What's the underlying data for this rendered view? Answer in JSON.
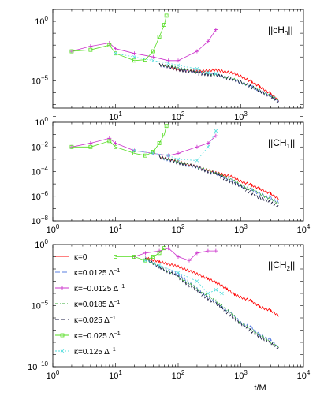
{
  "chart_data": [
    {
      "type": "line",
      "panel_label": "||cH",
      "panel_label_sub": "0",
      "panel_label_end": "||",
      "xscale": "log",
      "yscale": "log",
      "xlim": [
        1,
        10000
      ],
      "ylim": [
        5e-08,
        10
      ],
      "xticks": [
        {
          "v": 10,
          "b": "10",
          "e": "1"
        },
        {
          "v": 100,
          "b": "10",
          "e": "2"
        },
        {
          "v": 1000,
          "b": "10",
          "e": "3"
        }
      ],
      "yticks": [
        {
          "v": 1,
          "b": "10",
          "e": "0"
        },
        {
          "v": 1e-05,
          "b": "10",
          "e": "−5"
        }
      ],
      "series": [
        {
          "key": "k0",
          "x": [
            50,
            100,
            200,
            400,
            700,
            1000,
            1500,
            2000,
            3000,
            4000
          ],
          "y": [
            0.0003,
            0.0001,
            8e-05,
            0.0001,
            6e-05,
            3e-05,
            1e-05,
            4e-06,
            1e-06,
            3e-07
          ],
          "oscillate": true
        },
        {
          "key": "k1",
          "x": [
            50,
            100,
            200,
            400,
            700,
            1000,
            1500,
            2000,
            3000,
            4000
          ],
          "y": [
            0.0003,
            0.00015,
            8e-05,
            5e-05,
            2e-05,
            1e-05,
            5e-06,
            2e-06,
            8e-07,
            3e-07
          ],
          "oscillate": true
        },
        {
          "key": "k2",
          "x": [
            2,
            4,
            8,
            10,
            20,
            40,
            70,
            100,
            200,
            300,
            400
          ],
          "y": [
            0.003,
            0.008,
            0.015,
            0.005,
            0.002,
            0.001,
            0.0005,
            0.0005,
            0.003,
            0.02,
            0.2
          ]
        },
        {
          "key": "k3",
          "x": [
            50,
            100,
            200,
            400,
            700,
            1000,
            2000,
            4000
          ],
          "y": [
            0.0003,
            0.00015,
            7e-05,
            4e-05,
            2e-05,
            1e-05,
            2e-06,
            3e-07
          ],
          "oscillate": true
        },
        {
          "key": "k4",
          "x": [
            50,
            100,
            200,
            400,
            700,
            1000,
            2000,
            4000
          ],
          "y": [
            0.0003,
            0.00012,
            6e-05,
            4e-05,
            2e-05,
            1e-05,
            2e-06,
            2e-07
          ],
          "oscillate": true
        },
        {
          "key": "k5",
          "x": [
            2,
            4,
            8,
            10,
            20,
            30,
            40,
            50,
            60,
            65
          ],
          "y": [
            0.003,
            0.004,
            0.01,
            0.002,
            0.0005,
            0.0006,
            0.003,
            0.05,
            0.5,
            3
          ]
        },
        {
          "key": "k6",
          "x": [
            10,
            20,
            40,
            70,
            100,
            200,
            300,
            400
          ],
          "y": [
            0.002,
            0.001,
            0.0005,
            0.0003,
            0.0002,
            0.0001,
            5e-05,
            4e-05
          ]
        }
      ]
    },
    {
      "type": "line",
      "panel_label": "||CH",
      "panel_label_sub": "1",
      "panel_label_end": "||",
      "xscale": "log",
      "yscale": "log",
      "xlim": [
        1,
        10000
      ],
      "ylim": [
        1e-08,
        1
      ],
      "xticks": [
        {
          "v": 1,
          "b": "10",
          "e": "0"
        },
        {
          "v": 10,
          "b": "10",
          "e": "1"
        },
        {
          "v": 100,
          "b": "10",
          "e": "2"
        },
        {
          "v": 1000,
          "b": "10",
          "e": "3"
        },
        {
          "v": 10000,
          "b": "10",
          "e": "4"
        }
      ],
      "yticks": [
        {
          "v": 1,
          "b": "10",
          "e": "0"
        },
        {
          "v": 0.01,
          "b": "10",
          "e": "−2"
        },
        {
          "v": 0.0001,
          "b": "10",
          "e": "−4"
        },
        {
          "v": 1e-06,
          "b": "10",
          "e": "−6"
        },
        {
          "v": 1e-08,
          "b": "10",
          "e": "−8"
        }
      ],
      "series": [
        {
          "key": "k0",
          "x": [
            50,
            100,
            200,
            400,
            700,
            1000,
            1500,
            2000,
            3000,
            4000
          ],
          "y": [
            0.002,
            0.0008,
            0.0003,
            0.0001,
            5e-05,
            2e-05,
            1e-05,
            5e-06,
            2e-06,
            8e-07
          ],
          "oscillate": true
        },
        {
          "key": "k1",
          "x": [
            50,
            100,
            200,
            400,
            700,
            1000,
            1500,
            2000,
            3000,
            4000
          ],
          "y": [
            0.002,
            0.0008,
            0.0003,
            0.0001,
            3e-05,
            1e-05,
            5e-06,
            2e-06,
            1e-06,
            5e-07
          ],
          "oscillate": true
        },
        {
          "key": "k2",
          "x": [
            2,
            4,
            8,
            10,
            20,
            40,
            70,
            100,
            200,
            300,
            400
          ],
          "y": [
            0.01,
            0.02,
            0.05,
            0.02,
            0.005,
            0.003,
            0.002,
            0.003,
            0.01,
            0.02,
            0.08
          ]
        },
        {
          "key": "k3",
          "x": [
            50,
            100,
            200,
            400,
            700,
            1000,
            2000,
            4000
          ],
          "y": [
            0.002,
            0.0008,
            0.0003,
            0.0001,
            3e-05,
            1e-05,
            2e-06,
            3e-07
          ],
          "oscillate": true
        },
        {
          "key": "k4",
          "x": [
            50,
            100,
            200,
            400,
            700,
            1000,
            2000,
            4000
          ],
          "y": [
            0.002,
            0.0007,
            0.0003,
            8e-05,
            2e-05,
            8e-06,
            1e-06,
            2e-07
          ],
          "oscillate": true
        },
        {
          "key": "k5",
          "x": [
            2,
            4,
            8,
            10,
            20,
            30,
            40,
            50,
            60,
            65
          ],
          "y": [
            0.01,
            0.01,
            0.03,
            0.01,
            0.003,
            0.002,
            0.004,
            0.02,
            0.1,
            0.5
          ]
        },
        {
          "key": "k6",
          "x": [
            20,
            40,
            70,
            100,
            200,
            300,
            400
          ],
          "y": [
            0.005,
            0.003,
            0.002,
            0.001,
            0.0008,
            0.01,
            0.2
          ]
        }
      ]
    },
    {
      "type": "line",
      "panel_label": "||CH",
      "panel_label_sub": "2",
      "panel_label_end": "||",
      "xlabel": "t/M",
      "xscale": "log",
      "yscale": "log",
      "xlim": [
        1,
        10000
      ],
      "ylim": [
        1e-10,
        1
      ],
      "xticks": [
        {
          "v": 1,
          "b": "10",
          "e": "0"
        },
        {
          "v": 10,
          "b": "10",
          "e": "1"
        },
        {
          "v": 100,
          "b": "10",
          "e": "2"
        },
        {
          "v": 1000,
          "b": "10",
          "e": "3"
        },
        {
          "v": 10000,
          "b": "10",
          "e": "4"
        }
      ],
      "yticks": [
        {
          "v": 1,
          "b": "10",
          "e": "0"
        },
        {
          "v": 1e-05,
          "b": "10",
          "e": "−5"
        },
        {
          "v": 1e-10,
          "b": "10",
          "e": "−10"
        }
      ],
      "legend_position": "left",
      "series": [
        {
          "key": "k0",
          "x": [
            30,
            50,
            100,
            200,
            300,
            400,
            600,
            800,
            1000,
            1500,
            2000,
            3000,
            4000
          ],
          "y": [
            0.1,
            0.05,
            0.02,
            0.005,
            0.002,
            0.001,
            0.0003,
            0.0001,
            6e-05,
            3e-05,
            1e-05,
            5e-06,
            2e-06
          ],
          "oscillate": true
        },
        {
          "key": "k1",
          "x": [
            30,
            50,
            100,
            200,
            400,
            700,
            1000,
            1500,
            2000,
            3000,
            4000
          ],
          "y": [
            0.1,
            0.02,
            0.005,
            0.0003,
            2e-05,
            3e-06,
            5e-07,
            2e-07,
            5e-08,
            2e-08,
            5e-09
          ],
          "oscillate": true
        },
        {
          "key": "k2",
          "x": [
            20,
            30,
            50,
            70,
            100,
            150,
            200,
            300,
            400
          ],
          "y": [
            0.1,
            0.2,
            0.3,
            0.5,
            0.1,
            0.05,
            0.2,
            0.3,
            0.3
          ]
        },
        {
          "key": "k3",
          "x": [
            30,
            50,
            100,
            200,
            400,
            700,
            1000,
            2000,
            4000
          ],
          "y": [
            0.08,
            0.02,
            0.003,
            0.0003,
            3e-05,
            3e-06,
            5e-07,
            5e-08,
            5e-09
          ],
          "oscillate": true
        },
        {
          "key": "k4",
          "x": [
            30,
            50,
            100,
            200,
            400,
            700,
            1000,
            2000,
            4000
          ],
          "y": [
            0.08,
            0.02,
            0.003,
            0.0002,
            2e-05,
            2e-06,
            4e-07,
            4e-08,
            4e-09
          ],
          "oscillate": true
        },
        {
          "key": "k5",
          "x": [
            10,
            20,
            30,
            40,
            50,
            60
          ],
          "y": [
            0.1,
            0.1,
            0.05,
            0.1,
            0.2,
            0.5
          ]
        },
        {
          "key": "k6",
          "x": [
            30,
            50,
            100,
            200,
            300,
            400,
            500
          ],
          "y": [
            0.05,
            0.02,
            0.005,
            0.001,
            0.0001,
            0.0002,
            0.0001
          ]
        }
      ]
    }
  ],
  "legend": [
    {
      "key": "k0",
      "label": "κ=0",
      "color": "#ff0000",
      "dash": "",
      "marker": "none"
    },
    {
      "key": "k1",
      "label": "κ=0.0125 Δ",
      "sup": "−1",
      "color": "#5a7fe0",
      "dash": "6,3",
      "marker": "none"
    },
    {
      "key": "k2",
      "label": "κ=−0.0125 Δ",
      "sup": "−1",
      "color": "#cc33cc",
      "dash": "",
      "marker": "plus"
    },
    {
      "key": "k3",
      "label": "κ=0.0185 Δ",
      "sup": "−1",
      "color": "#33aa33",
      "dash": "4,2,1,2",
      "marker": "none"
    },
    {
      "key": "k4",
      "label": "κ=0.025 Δ",
      "sup": "−1",
      "color": "#1a1a40",
      "dash": "5,3",
      "marker": "none"
    },
    {
      "key": "k5",
      "label": "κ=−0.025 Δ",
      "sup": "−1",
      "color": "#55dd22",
      "dash": "",
      "marker": "square"
    },
    {
      "key": "k6",
      "label": "κ=0.125 Δ",
      "sup": "−1",
      "color": "#55dddd",
      "dash": "2,2",
      "marker": "cross"
    }
  ]
}
